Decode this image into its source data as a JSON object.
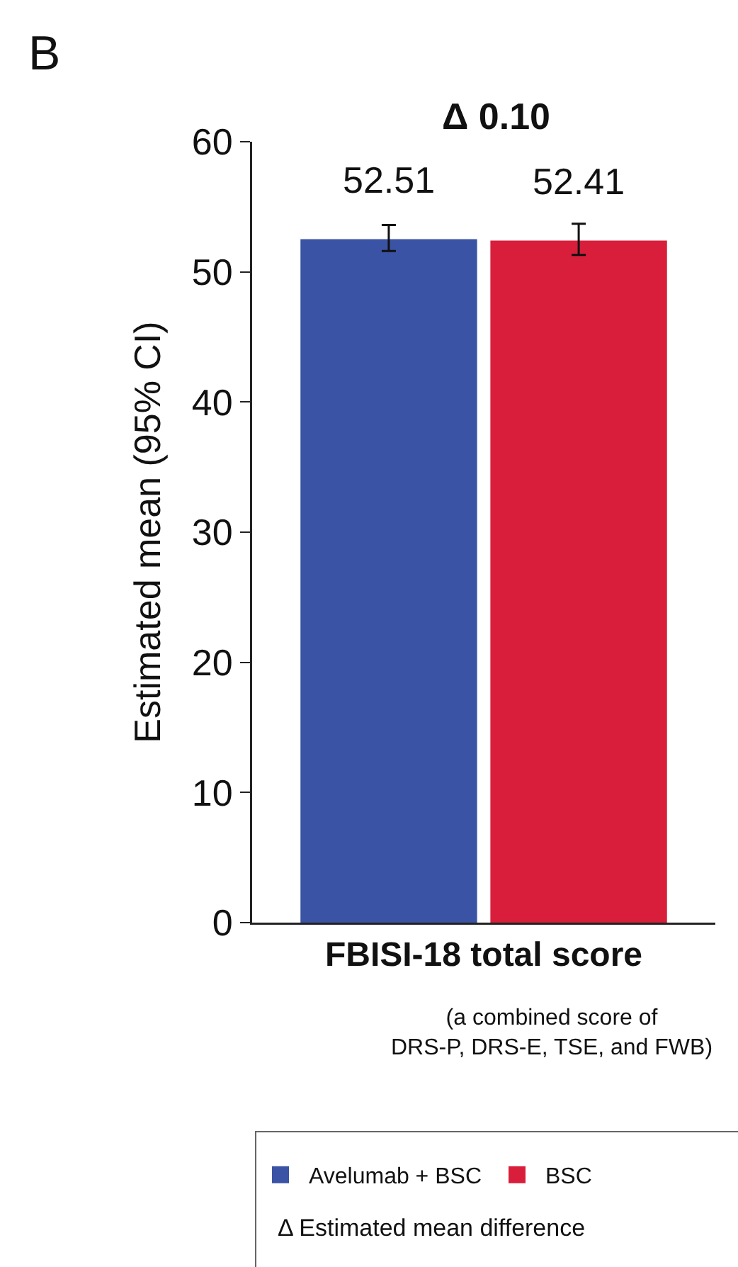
{
  "chart_data": {
    "type": "bar",
    "categories": [
      "FBISI-18 total score"
    ],
    "xlabel": "(a combined score of\nDRS-P, DRS-E, TSE, and FWB)",
    "ylabel": "Estimated mean (95% CI)",
    "series": [
      {
        "name": "Avelumab + BSC",
        "color": "#3a53a4",
        "values": [
          52.51
        ],
        "errors": [
          [
            51.6,
            53.6
          ]
        ]
      },
      {
        "name": "BSC",
        "color": "#d81e3b",
        "values": [
          52.41
        ],
        "errors": [
          [
            51.3,
            53.7
          ]
        ]
      }
    ],
    "data_labels": true,
    "ylim": [
      0,
      60
    ],
    "yticks": [
      0,
      10,
      20,
      30,
      40,
      50,
      60
    ],
    "grid": false,
    "legend": "bottom",
    "annotations": [
      "B",
      "Δ 0.10",
      "Δ Estimated mean difference"
    ]
  }
}
